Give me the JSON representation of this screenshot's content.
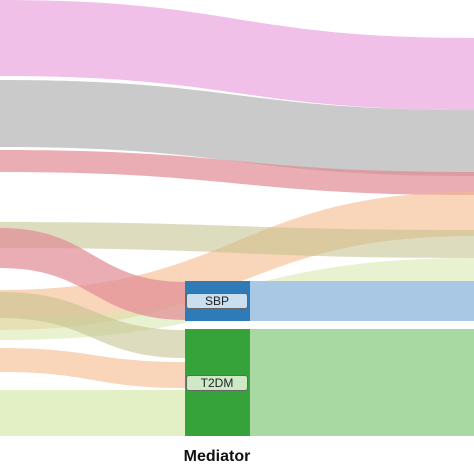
{
  "axis_title": "Mediator",
  "nodes": [
    {
      "id": "sbp",
      "label": "SBP",
      "color": "#2e7bb8",
      "label_bg": "#c9dff0",
      "outflow_color": "#a9c8e4"
    },
    {
      "id": "t2dm",
      "label": "T2DM",
      "color": "#36a33a",
      "label_bg": "#cde9c6",
      "outflow_color": "#a9d9a3"
    }
  ],
  "flow_colors": {
    "pink": "#e9a5df",
    "gray": "#b8b8b8",
    "red": "#e38a94",
    "orange": "#f5b98c",
    "olive": "#c2c08a",
    "lightgreen": "#d9eab0"
  }
}
